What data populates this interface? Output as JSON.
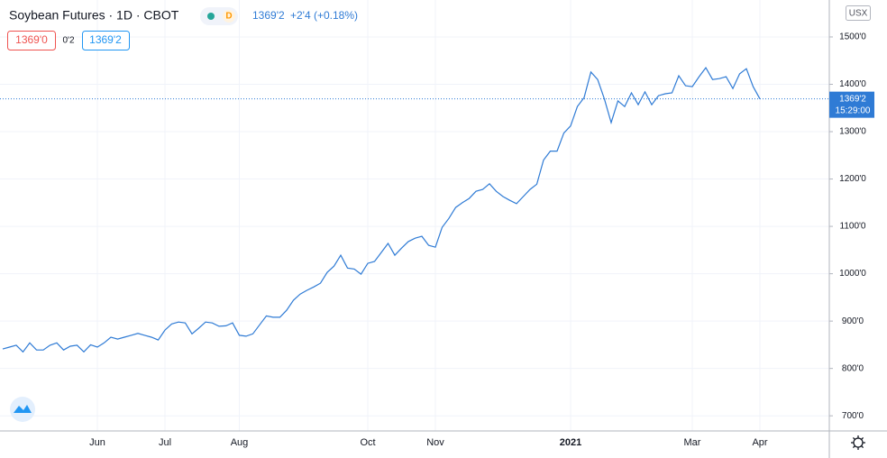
{
  "chart_data": {
    "type": "line",
    "title": "Soybean Futures · 1D · CBOT",
    "interval_badge": "D",
    "legend_last": "1369'2",
    "legend_change": "+2'4 (+0.18%)",
    "sell": "1369'0",
    "spread": "0'2",
    "buy": "1369'2",
    "currency": "USX",
    "price_tag": "1369'2",
    "countdown": "15:29:00",
    "color": "#2f7bd5",
    "grid": true,
    "ylim": [
      668,
      1578
    ],
    "yticks": [
      {
        "value": 700,
        "label": "700'0"
      },
      {
        "value": 800,
        "label": "800'0"
      },
      {
        "value": 900,
        "label": "900'0"
      },
      {
        "value": 1000,
        "label": "1000'0"
      },
      {
        "value": 1100,
        "label": "1100'0"
      },
      {
        "value": 1200,
        "label": "1200'0"
      },
      {
        "value": 1300,
        "label": "1300'0"
      },
      {
        "value": 1400,
        "label": "1400'0"
      },
      {
        "value": 1500,
        "label": "1500'0"
      }
    ],
    "categories": [
      null,
      null,
      null,
      null,
      null,
      null,
      null,
      null,
      null,
      null,
      null,
      null,
      null,
      null,
      "Jun",
      null,
      null,
      null,
      null,
      null,
      null,
      null,
      null,
      null,
      "Jul",
      null,
      null,
      null,
      null,
      null,
      null,
      null,
      null,
      null,
      null,
      "Aug",
      null,
      null,
      null,
      null,
      null,
      null,
      null,
      null,
      null,
      null,
      null,
      null,
      null,
      null,
      null,
      null,
      null,
      null,
      "Oct",
      null,
      null,
      null,
      null,
      null,
      null,
      null,
      null,
      null,
      "Nov",
      null,
      null,
      null,
      null,
      null,
      null,
      null,
      null,
      null,
      null,
      null,
      null,
      null,
      null,
      null,
      null,
      null,
      null,
      null,
      "2021",
      null,
      null,
      null,
      null,
      null,
      null,
      null,
      null,
      null,
      null,
      null,
      null,
      null,
      null,
      null,
      null,
      null,
      "Mar",
      null,
      null,
      null,
      null,
      null,
      null,
      null,
      null,
      null,
      "Apr"
    ],
    "values": [
      841,
      845,
      849,
      835,
      854,
      839,
      839,
      849,
      854,
      839,
      847,
      849,
      835,
      850,
      845,
      854,
      866,
      862,
      866,
      870,
      874,
      870,
      866,
      860,
      881,
      894,
      898,
      896,
      873,
      885,
      898,
      896,
      889,
      890,
      896,
      870,
      868,
      873,
      892,
      911,
      908,
      908,
      923,
      944,
      957,
      965,
      972,
      980,
      1003,
      1016,
      1039,
      1012,
      1010,
      999,
      1022,
      1026,
      1045,
      1064,
      1039,
      1054,
      1068,
      1075,
      1079,
      1060,
      1056,
      1098,
      1117,
      1140,
      1150,
      1159,
      1174,
      1178,
      1190,
      1174,
      1163,
      1155,
      1148,
      1163,
      1178,
      1189,
      1240,
      1259,
      1259,
      1297,
      1312,
      1353,
      1372,
      1426,
      1410,
      1369,
      1319,
      1365,
      1353,
      1382,
      1357,
      1384,
      1357,
      1376,
      1380,
      1382,
      1418,
      1397,
      1395,
      1416,
      1435,
      1410,
      1412,
      1416,
      1391,
      1422,
      1433,
      1395,
      1369.25
    ]
  }
}
